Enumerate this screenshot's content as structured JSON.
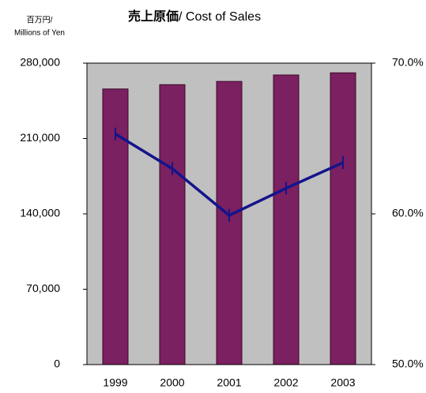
{
  "chart_data": {
    "type": "bar_line",
    "title": [
      "売上原価",
      "/ Cost of Sales"
    ],
    "y_label": [
      "百万円/",
      "Millions of Yen"
    ],
    "categories": [
      "1999",
      "2000",
      "2001",
      "2002",
      "2003"
    ],
    "series": [
      {
        "type": "bar",
        "color": "#7b2060",
        "values": [
          256000,
          260000,
          263000,
          269000,
          271000
        ]
      },
      {
        "type": "line",
        "color": "#14148c",
        "axis": "y2",
        "values": [
          65.3,
          63.0,
          59.9,
          61.7,
          63.4
        ]
      }
    ],
    "ylim": [
      0,
      280000
    ],
    "yticks": [
      0,
      {
        "value": 70000,
        "label": "70,000"
      },
      {
        "value": 140000,
        "label": "140,000"
      },
      {
        "value": 210000,
        "label": "210,000"
      },
      {
        "value": 280000,
        "label": "280,000"
      }
    ],
    "y2lim": [
      50,
      70
    ],
    "y2ticks": [
      {
        "value": 50,
        "label": "50.0%"
      },
      {
        "value": 60,
        "label": "60.0%"
      },
      {
        "value": 70,
        "label": "70.0%"
      }
    ],
    "plot_background": "#c0c0c0"
  }
}
